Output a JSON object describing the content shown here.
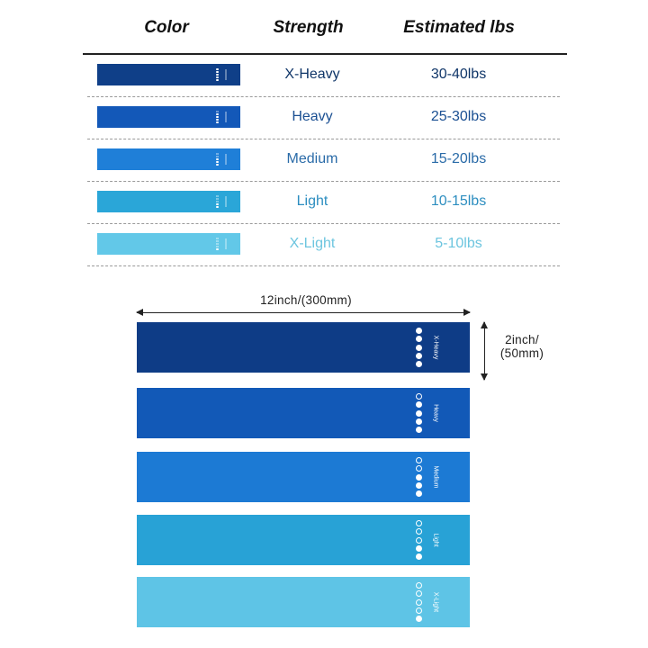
{
  "headers": {
    "color": "Color",
    "strength": "Strength",
    "estimated_lbs": "Estimated lbs"
  },
  "rows": [
    {
      "strength": "X-Heavy",
      "lbs": "30-40lbs",
      "color": "#0f3f88",
      "text_color": "#0f3568",
      "filled_dots": 5
    },
    {
      "strength": "Heavy",
      "lbs": "25-30lbs",
      "color": "#1358b8",
      "text_color": "#1a4f92",
      "filled_dots": 4
    },
    {
      "strength": "Medium",
      "lbs": "15-20lbs",
      "color": "#1f7fd8",
      "text_color": "#2a6ba8",
      "filled_dots": 3
    },
    {
      "strength": "Light",
      "lbs": "10-15lbs",
      "color": "#2aa6d8",
      "text_color": "#2d8ec0",
      "filled_dots": 2
    },
    {
      "strength": "X-Light",
      "lbs": "5-10lbs",
      "color": "#62c8e8",
      "text_color": "#6cc5df",
      "filled_dots": 1
    }
  ],
  "dimensions": {
    "length": "12inch/(300mm)",
    "width_line1": "2inch/",
    "width_line2": "(50mm)"
  },
  "bands": [
    {
      "label": "X-Heavy",
      "color": "#0e3c86",
      "filled_dots": 5
    },
    {
      "label": "Heavy",
      "color": "#1259b7",
      "filled_dots": 4
    },
    {
      "label": "Medium",
      "color": "#1c7ad4",
      "filled_dots": 3
    },
    {
      "label": "Light",
      "color": "#28a2d6",
      "filled_dots": 2
    },
    {
      "label": "X-Light",
      "color": "#5ec4e6",
      "filled_dots": 1
    }
  ]
}
